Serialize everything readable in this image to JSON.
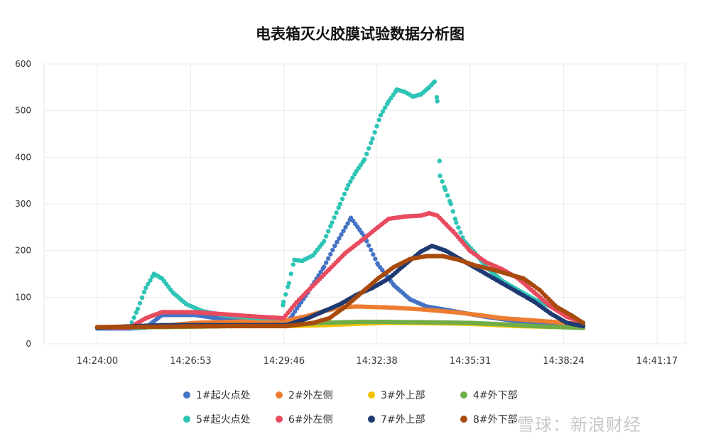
{
  "chart_data": {
    "type": "scatter",
    "title": "电表箱灭火胶膜试验数据分析图",
    "xlabel": "",
    "ylabel": "",
    "ylim": [
      0,
      600
    ],
    "yticks": [
      "0",
      "100",
      "200",
      "300",
      "400",
      "500",
      "600"
    ],
    "xlim": [
      "14:24:00",
      "14:41:17"
    ],
    "xticks": [
      "14:24:00",
      "14:26:53",
      "14:29:46",
      "14:32:38",
      "14:35:31",
      "14:38:24",
      "14:41:17"
    ],
    "grid": true,
    "legend_position": "bottom",
    "series": [
      {
        "name": "1#起火点处",
        "color": "#4472C4",
        "points": [
          [
            "14:24:00",
            33
          ],
          [
            "14:25:00",
            33
          ],
          [
            "14:25:30",
            35
          ],
          [
            "14:26:00",
            62
          ],
          [
            "14:27:00",
            62
          ],
          [
            "14:28:00",
            52
          ],
          [
            "14:29:00",
            47
          ],
          [
            "14:29:50",
            42
          ],
          [
            "14:30:30",
            110
          ],
          [
            "14:31:00",
            165
          ],
          [
            "14:31:20",
            210
          ],
          [
            "14:31:50",
            270
          ],
          [
            "14:32:15",
            230
          ],
          [
            "14:32:40",
            170
          ],
          [
            "14:33:10",
            125
          ],
          [
            "14:33:40",
            95
          ],
          [
            "14:34:10",
            80
          ],
          [
            "14:35:00",
            70
          ],
          [
            "14:36:00",
            58
          ],
          [
            "14:37:00",
            48
          ],
          [
            "14:38:00",
            42
          ],
          [
            "14:39:00",
            38
          ]
        ]
      },
      {
        "name": "2#外左侧",
        "color": "#ED7D31",
        "points": [
          [
            "14:24:00",
            35
          ],
          [
            "14:26:00",
            38
          ],
          [
            "14:27:00",
            45
          ],
          [
            "14:28:30",
            48
          ],
          [
            "14:29:50",
            50
          ],
          [
            "14:30:30",
            60
          ],
          [
            "14:31:00",
            70
          ],
          [
            "14:31:30",
            78
          ],
          [
            "14:32:00",
            80
          ],
          [
            "14:33:00",
            78
          ],
          [
            "14:34:00",
            74
          ],
          [
            "14:35:00",
            68
          ],
          [
            "14:35:45",
            62
          ],
          [
            "14:36:30",
            55
          ],
          [
            "14:37:30",
            50
          ],
          [
            "14:38:30",
            45
          ],
          [
            "14:39:00",
            42
          ]
        ]
      },
      {
        "name": "3#外上部",
        "color": "#F2C100",
        "points": [
          [
            "14:24:00",
            35
          ],
          [
            "14:26:00",
            36
          ],
          [
            "14:28:00",
            38
          ],
          [
            "14:29:50",
            38
          ],
          [
            "14:31:00",
            40
          ],
          [
            "14:32:00",
            43
          ],
          [
            "14:33:00",
            45
          ],
          [
            "14:34:30",
            44
          ],
          [
            "14:35:30",
            43
          ],
          [
            "14:37:00",
            38
          ],
          [
            "14:39:00",
            35
          ]
        ]
      },
      {
        "name": "4#外下部",
        "color": "#70AD47",
        "points": [
          [
            "14:24:00",
            35
          ],
          [
            "14:26:00",
            36
          ],
          [
            "14:28:00",
            38
          ],
          [
            "14:29:50",
            40
          ],
          [
            "14:31:00",
            45
          ],
          [
            "14:32:00",
            47
          ],
          [
            "14:33:00",
            47
          ],
          [
            "14:34:30",
            46
          ],
          [
            "14:35:30",
            45
          ],
          [
            "14:36:30",
            42
          ],
          [
            "14:37:30",
            38
          ],
          [
            "14:39:00",
            34
          ]
        ]
      },
      {
        "name": "5#起火点处",
        "color": "#2EC4B6",
        "points": [
          [
            "14:24:00",
            35
          ],
          [
            "14:25:00",
            35
          ],
          [
            "14:25:15",
            75
          ],
          [
            "14:25:30",
            120
          ],
          [
            "14:25:45",
            150
          ],
          [
            "14:26:00",
            140
          ],
          [
            "14:26:20",
            110
          ],
          [
            "14:26:45",
            85
          ],
          [
            "14:27:15",
            70
          ],
          [
            "14:28:00",
            60
          ],
          [
            "14:29:00",
            55
          ],
          [
            "14:29:40",
            55
          ],
          [
            "14:29:45",
            90
          ],
          [
            "14:29:55",
            130
          ],
          [
            "14:30:05",
            180
          ],
          [
            "14:30:20",
            178
          ],
          [
            "14:30:40",
            190
          ],
          [
            "14:31:00",
            220
          ],
          [
            "14:31:15",
            260
          ],
          [
            "14:31:30",
            300
          ],
          [
            "14:31:45",
            340
          ],
          [
            "14:32:00",
            370
          ],
          [
            "14:32:15",
            395
          ],
          [
            "14:32:30",
            440
          ],
          [
            "14:32:45",
            490
          ],
          [
            "14:33:00",
            520
          ],
          [
            "14:33:15",
            545
          ],
          [
            "14:33:30",
            540
          ],
          [
            "14:33:45",
            530
          ],
          [
            "14:34:00",
            535
          ],
          [
            "14:34:15",
            550
          ],
          [
            "14:34:25",
            562
          ],
          [
            "14:34:30",
            520
          ],
          [
            "14:34:35",
            360
          ],
          [
            "14:34:45",
            330
          ],
          [
            "14:34:55",
            300
          ],
          [
            "14:35:05",
            260
          ],
          [
            "14:35:20",
            220
          ],
          [
            "14:35:40",
            195
          ],
          [
            "14:36:00",
            165
          ],
          [
            "14:36:30",
            135
          ],
          [
            "14:37:00",
            115
          ],
          [
            "14:37:30",
            95
          ],
          [
            "14:38:00",
            80
          ],
          [
            "14:38:30",
            60
          ],
          [
            "14:39:00",
            45
          ]
        ]
      },
      {
        "name": "6#外左侧",
        "color": "#E84A5F",
        "points": [
          [
            "14:24:00",
            35
          ],
          [
            "14:25:00",
            35
          ],
          [
            "14:25:30",
            55
          ],
          [
            "14:26:00",
            68
          ],
          [
            "14:27:00",
            68
          ],
          [
            "14:28:00",
            63
          ],
          [
            "14:29:00",
            58
          ],
          [
            "14:29:45",
            55
          ],
          [
            "14:30:10",
            90
          ],
          [
            "14:30:40",
            125
          ],
          [
            "14:31:10",
            160
          ],
          [
            "14:31:40",
            195
          ],
          [
            "14:32:10",
            222
          ],
          [
            "14:32:40",
            250
          ],
          [
            "14:33:00",
            268
          ],
          [
            "14:33:30",
            273
          ],
          [
            "14:34:00",
            275
          ],
          [
            "14:34:15",
            280
          ],
          [
            "14:34:30",
            275
          ],
          [
            "14:35:00",
            240
          ],
          [
            "14:35:30",
            200
          ],
          [
            "14:36:00",
            175
          ],
          [
            "14:36:30",
            160
          ],
          [
            "14:37:00",
            140
          ],
          [
            "14:37:30",
            110
          ],
          [
            "14:38:00",
            80
          ],
          [
            "14:38:30",
            58
          ],
          [
            "14:39:00",
            45
          ]
        ]
      },
      {
        "name": "7#外上部",
        "color": "#1F3A73",
        "points": [
          [
            "14:24:00",
            35
          ],
          [
            "14:26:00",
            40
          ],
          [
            "14:27:30",
            40
          ],
          [
            "14:29:00",
            40
          ],
          [
            "14:29:50",
            40
          ],
          [
            "14:30:30",
            55
          ],
          [
            "14:31:00",
            70
          ],
          [
            "14:31:30",
            85
          ],
          [
            "14:32:00",
            105
          ],
          [
            "14:32:30",
            120
          ],
          [
            "14:33:00",
            140
          ],
          [
            "14:33:30",
            170
          ],
          [
            "14:34:00",
            198
          ],
          [
            "14:34:20",
            210
          ],
          [
            "14:34:45",
            200
          ],
          [
            "14:35:30",
            170
          ],
          [
            "14:36:00",
            150
          ],
          [
            "14:36:30",
            130
          ],
          [
            "14:37:00",
            110
          ],
          [
            "14:37:30",
            90
          ],
          [
            "14:38:00",
            65
          ],
          [
            "14:38:30",
            45
          ],
          [
            "14:39:00",
            38
          ]
        ]
      },
      {
        "name": "8#外下部",
        "color": "#A84A0C",
        "points": [
          [
            "14:24:00",
            36
          ],
          [
            "14:26:00",
            37
          ],
          [
            "14:28:00",
            38
          ],
          [
            "14:29:50",
            38
          ],
          [
            "14:30:40",
            45
          ],
          [
            "14:31:10",
            55
          ],
          [
            "14:31:40",
            80
          ],
          [
            "14:32:10",
            110
          ],
          [
            "14:32:40",
            140
          ],
          [
            "14:33:10",
            165
          ],
          [
            "14:33:40",
            182
          ],
          [
            "14:34:10",
            188
          ],
          [
            "14:34:40",
            188
          ],
          [
            "14:35:10",
            180
          ],
          [
            "14:35:40",
            168
          ],
          [
            "14:36:10",
            160
          ],
          [
            "14:36:40",
            150
          ],
          [
            "14:37:10",
            140
          ],
          [
            "14:37:40",
            115
          ],
          [
            "14:38:10",
            80
          ],
          [
            "14:38:40",
            60
          ],
          [
            "14:39:00",
            45
          ]
        ]
      }
    ]
  },
  "watermark": "雪球：新浪财经"
}
